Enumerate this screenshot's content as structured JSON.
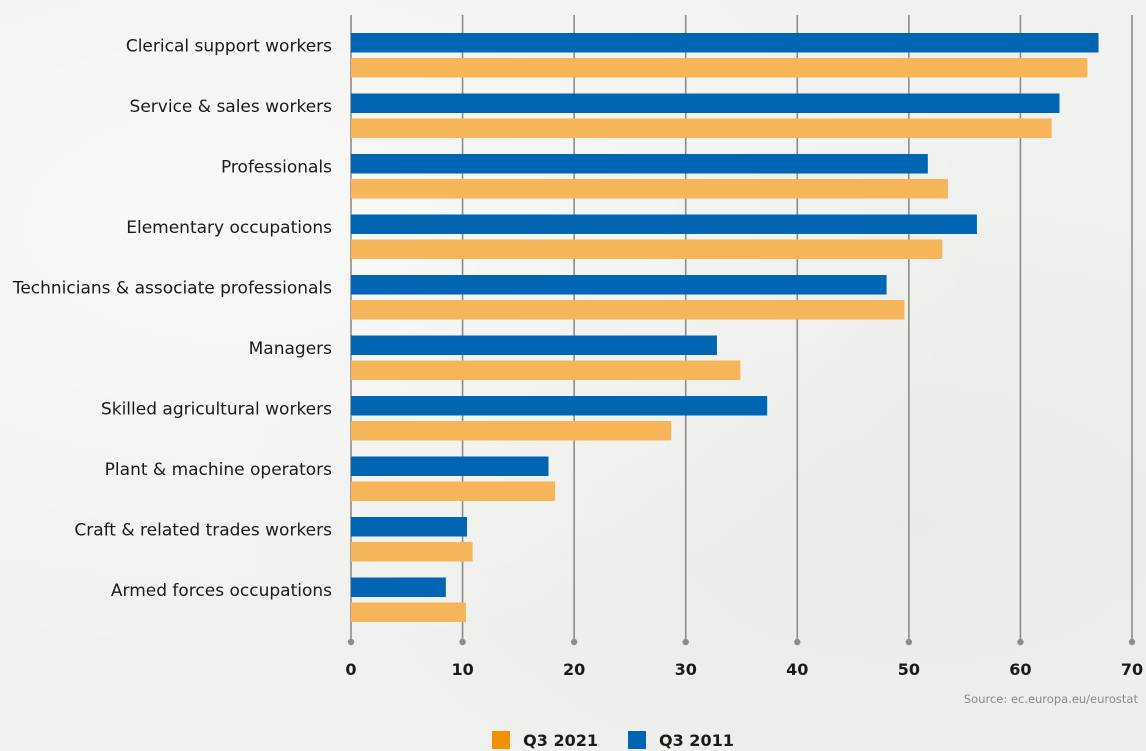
{
  "chart_data": {
    "type": "bar",
    "orientation": "horizontal",
    "categories": [
      "Clerical support workers",
      "Service & sales workers",
      "Professionals",
      "Elementary occupations",
      "Technicians & associate professionals",
      "Managers",
      "Skilled agricultural workers",
      "Plant & machine operators",
      "Craft & related trades workers",
      "Armed forces occupations"
    ],
    "series": [
      {
        "name": "Q3 2011",
        "color": "#0066b3",
        "values": [
          67.0,
          63.5,
          51.7,
          56.1,
          48.0,
          32.8,
          37.3,
          17.7,
          10.4,
          8.5
        ]
      },
      {
        "name": "Q3 2021",
        "color": "#f7b55a",
        "values": [
          66.0,
          62.8,
          53.5,
          53.0,
          49.6,
          34.9,
          28.7,
          18.3,
          10.9,
          10.3
        ]
      }
    ],
    "xlim": [
      0,
      70
    ],
    "xticks": [
      "0",
      "10",
      "20",
      "30",
      "40",
      "50",
      "60",
      "70"
    ],
    "grid": true,
    "legend_position": "bottom"
  },
  "legend": {
    "items": [
      {
        "label": "Q3 2021",
        "color": "#f39200"
      },
      {
        "label": "Q3 2011",
        "color": "#0066b3"
      }
    ]
  },
  "source_text": "Source: ec.europa.eu/eurostat"
}
